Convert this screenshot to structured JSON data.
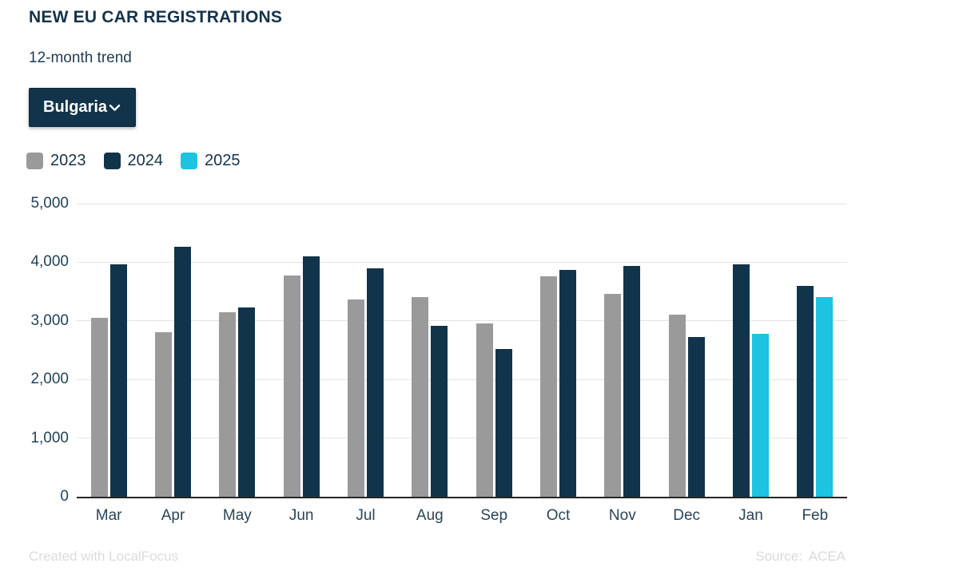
{
  "header": {
    "title": "NEW EU CAR REGISTRATIONS",
    "subtitle": "12-month trend",
    "country_selector": {
      "value": "Bulgaria",
      "icon": "chevron-down",
      "background_color": "#12344a"
    }
  },
  "legend": [
    {
      "label": "2023",
      "color": "#9a9a9a"
    },
    {
      "label": "2024",
      "color": "#12344a"
    },
    {
      "label": "2025",
      "color": "#1dc3e0"
    }
  ],
  "chart_data": {
    "type": "bar",
    "title": "NEW EU CAR REGISTRATIONS",
    "subtitle": "12-month trend",
    "region": "Bulgaria",
    "categories": [
      "Mar",
      "Apr",
      "May",
      "Jun",
      "Jul",
      "Aug",
      "Sep",
      "Oct",
      "Nov",
      "Dec",
      "Jan",
      "Feb"
    ],
    "series": [
      {
        "name": "2023",
        "color": "#9a9a9a",
        "values": [
          3050,
          2810,
          3150,
          3780,
          3370,
          3410,
          2960,
          3760,
          3460,
          3110,
          null,
          null
        ]
      },
      {
        "name": "2024",
        "color": "#12344a",
        "values": [
          3960,
          4260,
          3230,
          4100,
          3890,
          2920,
          2520,
          3870,
          3940,
          2720,
          3970,
          3600
        ]
      },
      {
        "name": "2025",
        "color": "#1dc3e0",
        "values": [
          null,
          null,
          null,
          null,
          null,
          null,
          null,
          null,
          null,
          null,
          2780,
          3400
        ]
      }
    ],
    "ylim": [
      0,
      5000
    ],
    "ytick_interval": 1000,
    "ytick_labels": [
      "0",
      "1,000",
      "2,000",
      "3,000",
      "4,000",
      "5,000"
    ],
    "xlabel": "",
    "ylabel": "",
    "grid": true,
    "legend_position": "top"
  },
  "footer": {
    "credit": "Created with LocalFocus",
    "source": "Source: ACEA"
  }
}
